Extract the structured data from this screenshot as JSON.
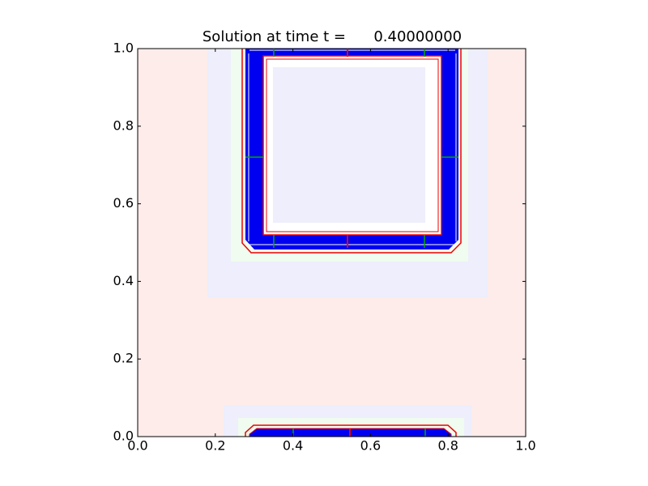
{
  "chart_data": {
    "type": "image",
    "title": "Solution at time t =      0.40000000",
    "xlim": [
      0,
      1
    ],
    "ylim": [
      0,
      1
    ],
    "xticks": [
      {
        "value": 0,
        "label": "0.0"
      },
      0.2,
      0.4,
      0.6,
      0.8,
      {
        "value": 1,
        "label": "1.0"
      }
    ],
    "yticks": [
      {
        "value": 0,
        "label": "0.0"
      },
      0.2,
      0.4,
      0.6,
      0.8,
      {
        "value": 1,
        "label": "1.0"
      }
    ]
  }
}
